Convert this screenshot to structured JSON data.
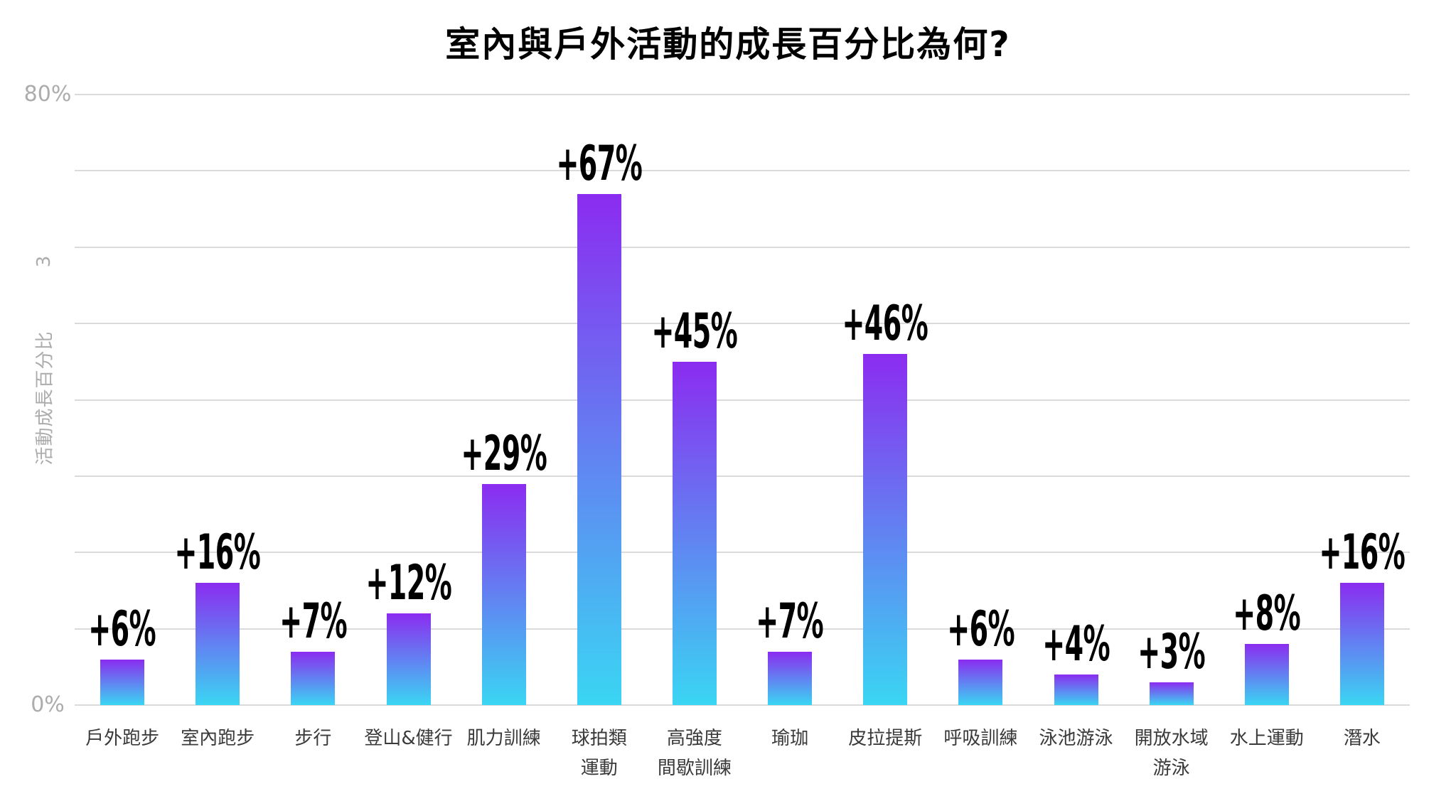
{
  "title": "室內與戶外活動的成長百分比為何?",
  "chart_data": {
    "type": "bar",
    "title": "室內與戶外活動的成長百分比為何?",
    "ylabel": "活動成長百分比",
    "ylabel_footnote": "3",
    "ylim": [
      0,
      80
    ],
    "grid": true,
    "grid_step": 10,
    "legend": "none",
    "yticks_shown": [
      {
        "label": "80%",
        "value": 80
      },
      {
        "label": "0%",
        "value": 0
      }
    ],
    "categories": [
      "戶外跑步",
      "室內跑步",
      "步行",
      "登山&健行",
      "肌力訓練",
      "球拍類運動",
      "高強度間歇訓練",
      "瑜珈",
      "皮拉提斯",
      "呼吸訓練",
      "泳池游泳",
      "開放水域游泳",
      "水上運動",
      "潛水"
    ],
    "category_lines": [
      [
        "戶外跑步"
      ],
      [
        "室內跑步"
      ],
      [
        "步行"
      ],
      [
        "登山&健行"
      ],
      [
        "肌力訓練"
      ],
      [
        "球拍類",
        "運動"
      ],
      [
        "高強度",
        "間歇訓練"
      ],
      [
        "瑜珈"
      ],
      [
        "皮拉提斯"
      ],
      [
        "呼吸訓練"
      ],
      [
        "泳池游泳"
      ],
      [
        "開放水域",
        "游泳"
      ],
      [
        "水上運動"
      ],
      [
        "潛水"
      ]
    ],
    "values": [
      6,
      16,
      7,
      12,
      29,
      67,
      45,
      7,
      46,
      6,
      4,
      3,
      8,
      16
    ],
    "value_labels": [
      "+6%",
      "+16%",
      "+7%",
      "+12%",
      "+29%",
      "+67%",
      "+45%",
      "+7%",
      "+46%",
      "+6%",
      "+4%",
      "+3%",
      "+8%",
      "+16%"
    ],
    "colors": {
      "bar_gradient_top": "#8B2CF0",
      "bar_gradient_bottom": "#3AD6F3",
      "gridline": "#DADADA",
      "axis_text": "#ACACAC",
      "category_text": "#3A3A3A",
      "value_text": "#000000",
      "title_text": "#000000",
      "background": "#FFFFFF"
    }
  }
}
